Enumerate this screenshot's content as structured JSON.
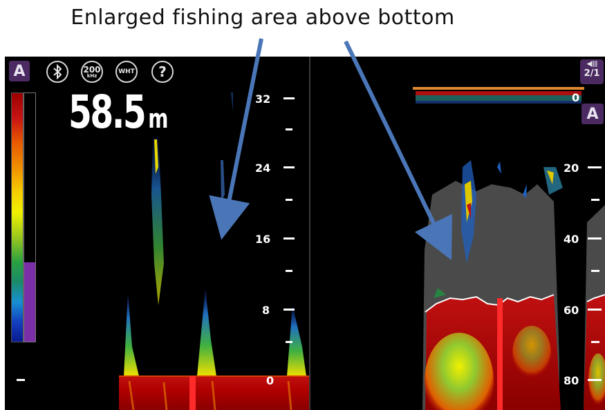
{
  "caption": "Enlarged fishing area above bottom",
  "left_panel": {
    "mode_badge": "A",
    "icons": [
      {
        "name": "bluetooth-icon",
        "glyph": "✱"
      },
      {
        "name": "frequency-icon",
        "label": "200",
        "sub": "kHz"
      },
      {
        "name": "white-line-icon",
        "label": "WHT"
      },
      {
        "name": "help-icon",
        "label": "?"
      }
    ],
    "depth_value": "58.5",
    "depth_unit": "m",
    "scale_labels": [
      "32",
      "24",
      "16",
      "8",
      "0"
    ]
  },
  "right_panel": {
    "mode_badge": "A",
    "page_indicator": "2/1",
    "scale_labels": [
      "0",
      "20",
      "40",
      "60",
      "80"
    ]
  },
  "colors": {
    "bottom_red": "#b30000",
    "marker_red": "#ff2a2a",
    "overlay_gray": "#4a4a4a",
    "arrow_blue": "#4a76b8",
    "badge_purple": "#4b2a62",
    "surface_orange": "#e08a30"
  }
}
